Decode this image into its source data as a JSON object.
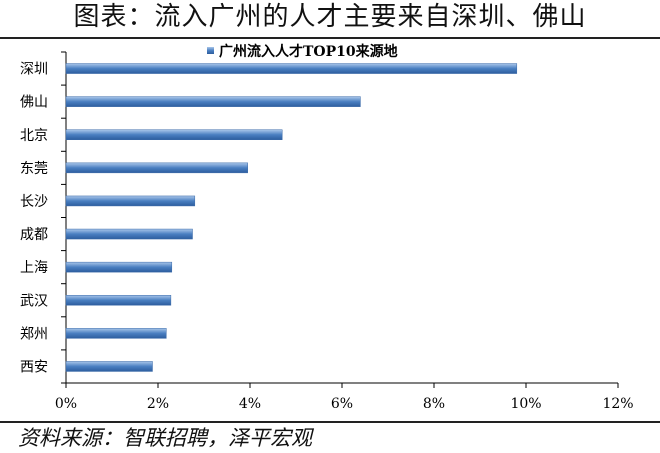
{
  "header": {
    "title": "图表：流入广州的人才主要来自深圳、佛山"
  },
  "footer": {
    "source": "资料来源：智联招聘，泽平宏观"
  },
  "chart_data": {
    "type": "bar",
    "orientation": "horizontal",
    "title": "",
    "legend": {
      "position": "top-center",
      "entries": [
        "广州流入人才TOP10来源地"
      ]
    },
    "categories": [
      "深圳",
      "佛山",
      "北京",
      "东莞",
      "长沙",
      "成都",
      "上海",
      "武汉",
      "郑州",
      "西安"
    ],
    "series": [
      {
        "name": "广州流入人才TOP10来源地",
        "values": [
          9.8,
          6.4,
          4.7,
          3.95,
          2.8,
          2.75,
          2.3,
          2.28,
          2.18,
          1.88
        ],
        "color": "#4a7fc1"
      }
    ],
    "xlim": [
      0,
      12
    ],
    "xticks": [
      0,
      2,
      4,
      6,
      8,
      10,
      12
    ],
    "xtick_labels": [
      "0%",
      "2%",
      "4%",
      "6%",
      "8%",
      "10%",
      "12%"
    ],
    "grid": false
  }
}
